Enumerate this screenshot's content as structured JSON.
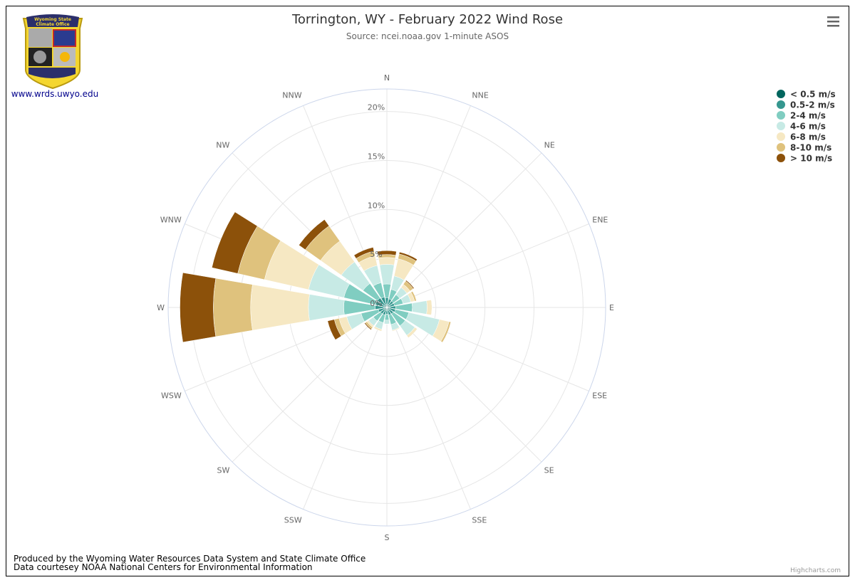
{
  "chart_data": {
    "type": "windrose",
    "title": "Torrington, WY - February 2022 Wind Rose",
    "subtitle": "Source: ncei.noaa.gov 1-minute ASOS",
    "categories": [
      "N",
      "NNE",
      "NE",
      "ENE",
      "E",
      "ESE",
      "SE",
      "SSE",
      "S",
      "SSW",
      "SW",
      "WSW",
      "W",
      "WNW",
      "NW",
      "NNW"
    ],
    "series": [
      {
        "name": "< 0.5 m/s",
        "color": "#01665e",
        "values": [
          0.3,
          0.3,
          0.3,
          0.3,
          0.3,
          0.3,
          0.3,
          0.3,
          0.3,
          0.3,
          0.3,
          0.3,
          0.3,
          0.3,
          0.3,
          0.3
        ]
      },
      {
        "name": "0.5-2 m/s",
        "color": "#35978f",
        "values": [
          0.7,
          0.6,
          0.5,
          0.5,
          0.6,
          0.6,
          0.5,
          0.5,
          0.4,
          0.5,
          0.5,
          0.6,
          0.9,
          0.9,
          0.9,
          0.8
        ]
      },
      {
        "name": "2-4 m/s",
        "color": "#80cdc1",
        "values": [
          1.4,
          1.0,
          0.8,
          0.9,
          1.7,
          1.4,
          1.5,
          1.0,
          0.6,
          0.8,
          0.9,
          1.8,
          3.2,
          3.3,
          1.8,
          1.5
        ]
      },
      {
        "name": "4-6 m/s",
        "color": "#c7eae5",
        "values": [
          2.0,
          1.4,
          0.9,
          0.8,
          1.5,
          3.2,
          1.2,
          0.6,
          0.4,
          0.7,
          0.6,
          1.5,
          3.6,
          3.7,
          2.7,
          1.8
        ]
      },
      {
        "name": "6-8 m/s",
        "color": "#f6e8c3",
        "values": [
          0.7,
          1.8,
          0.4,
          0.4,
          0.5,
          1.0,
          0.3,
          0.1,
          0,
          0.2,
          0.2,
          0.8,
          5.9,
          4.6,
          2.6,
          1.0
        ]
      },
      {
        "name": "8-10 m/s",
        "color": "#dfc27d",
        "values": [
          0.3,
          0.5,
          0.4,
          0.2,
          0,
          0.2,
          0,
          0,
          0,
          0,
          0.2,
          0.5,
          3.8,
          2.8,
          1.9,
          0.5
        ]
      },
      {
        "name": "> 10 m/s",
        "color": "#8c510a",
        "values": [
          0.4,
          0.2,
          0.1,
          0,
          0,
          0,
          0,
          0,
          0,
          0,
          0.1,
          0.7,
          3.4,
          2.7,
          0.8,
          0.4
        ]
      }
    ],
    "ylim": [
      0,
      22.3
    ],
    "yticks": [
      {
        "value": 0,
        "label": "0%"
      },
      {
        "value": 5,
        "label": "5%"
      },
      {
        "value": 10,
        "label": "10%"
      },
      {
        "value": 15,
        "label": "15%"
      },
      {
        "value": 20,
        "label": "20%"
      }
    ],
    "grid": true,
    "legend": "top-right"
  },
  "logo": {
    "line1": "Wyoming State",
    "line2": "Climate Office",
    "link": "www.wrds.uwyo.edu"
  },
  "credits": {
    "line1": "Produced by the Wyoming Water Resources Data System and State Climate Office",
    "line2": "Data courtesey NOAA National Centers for Environmental Information",
    "brand": "Highcharts.com"
  }
}
